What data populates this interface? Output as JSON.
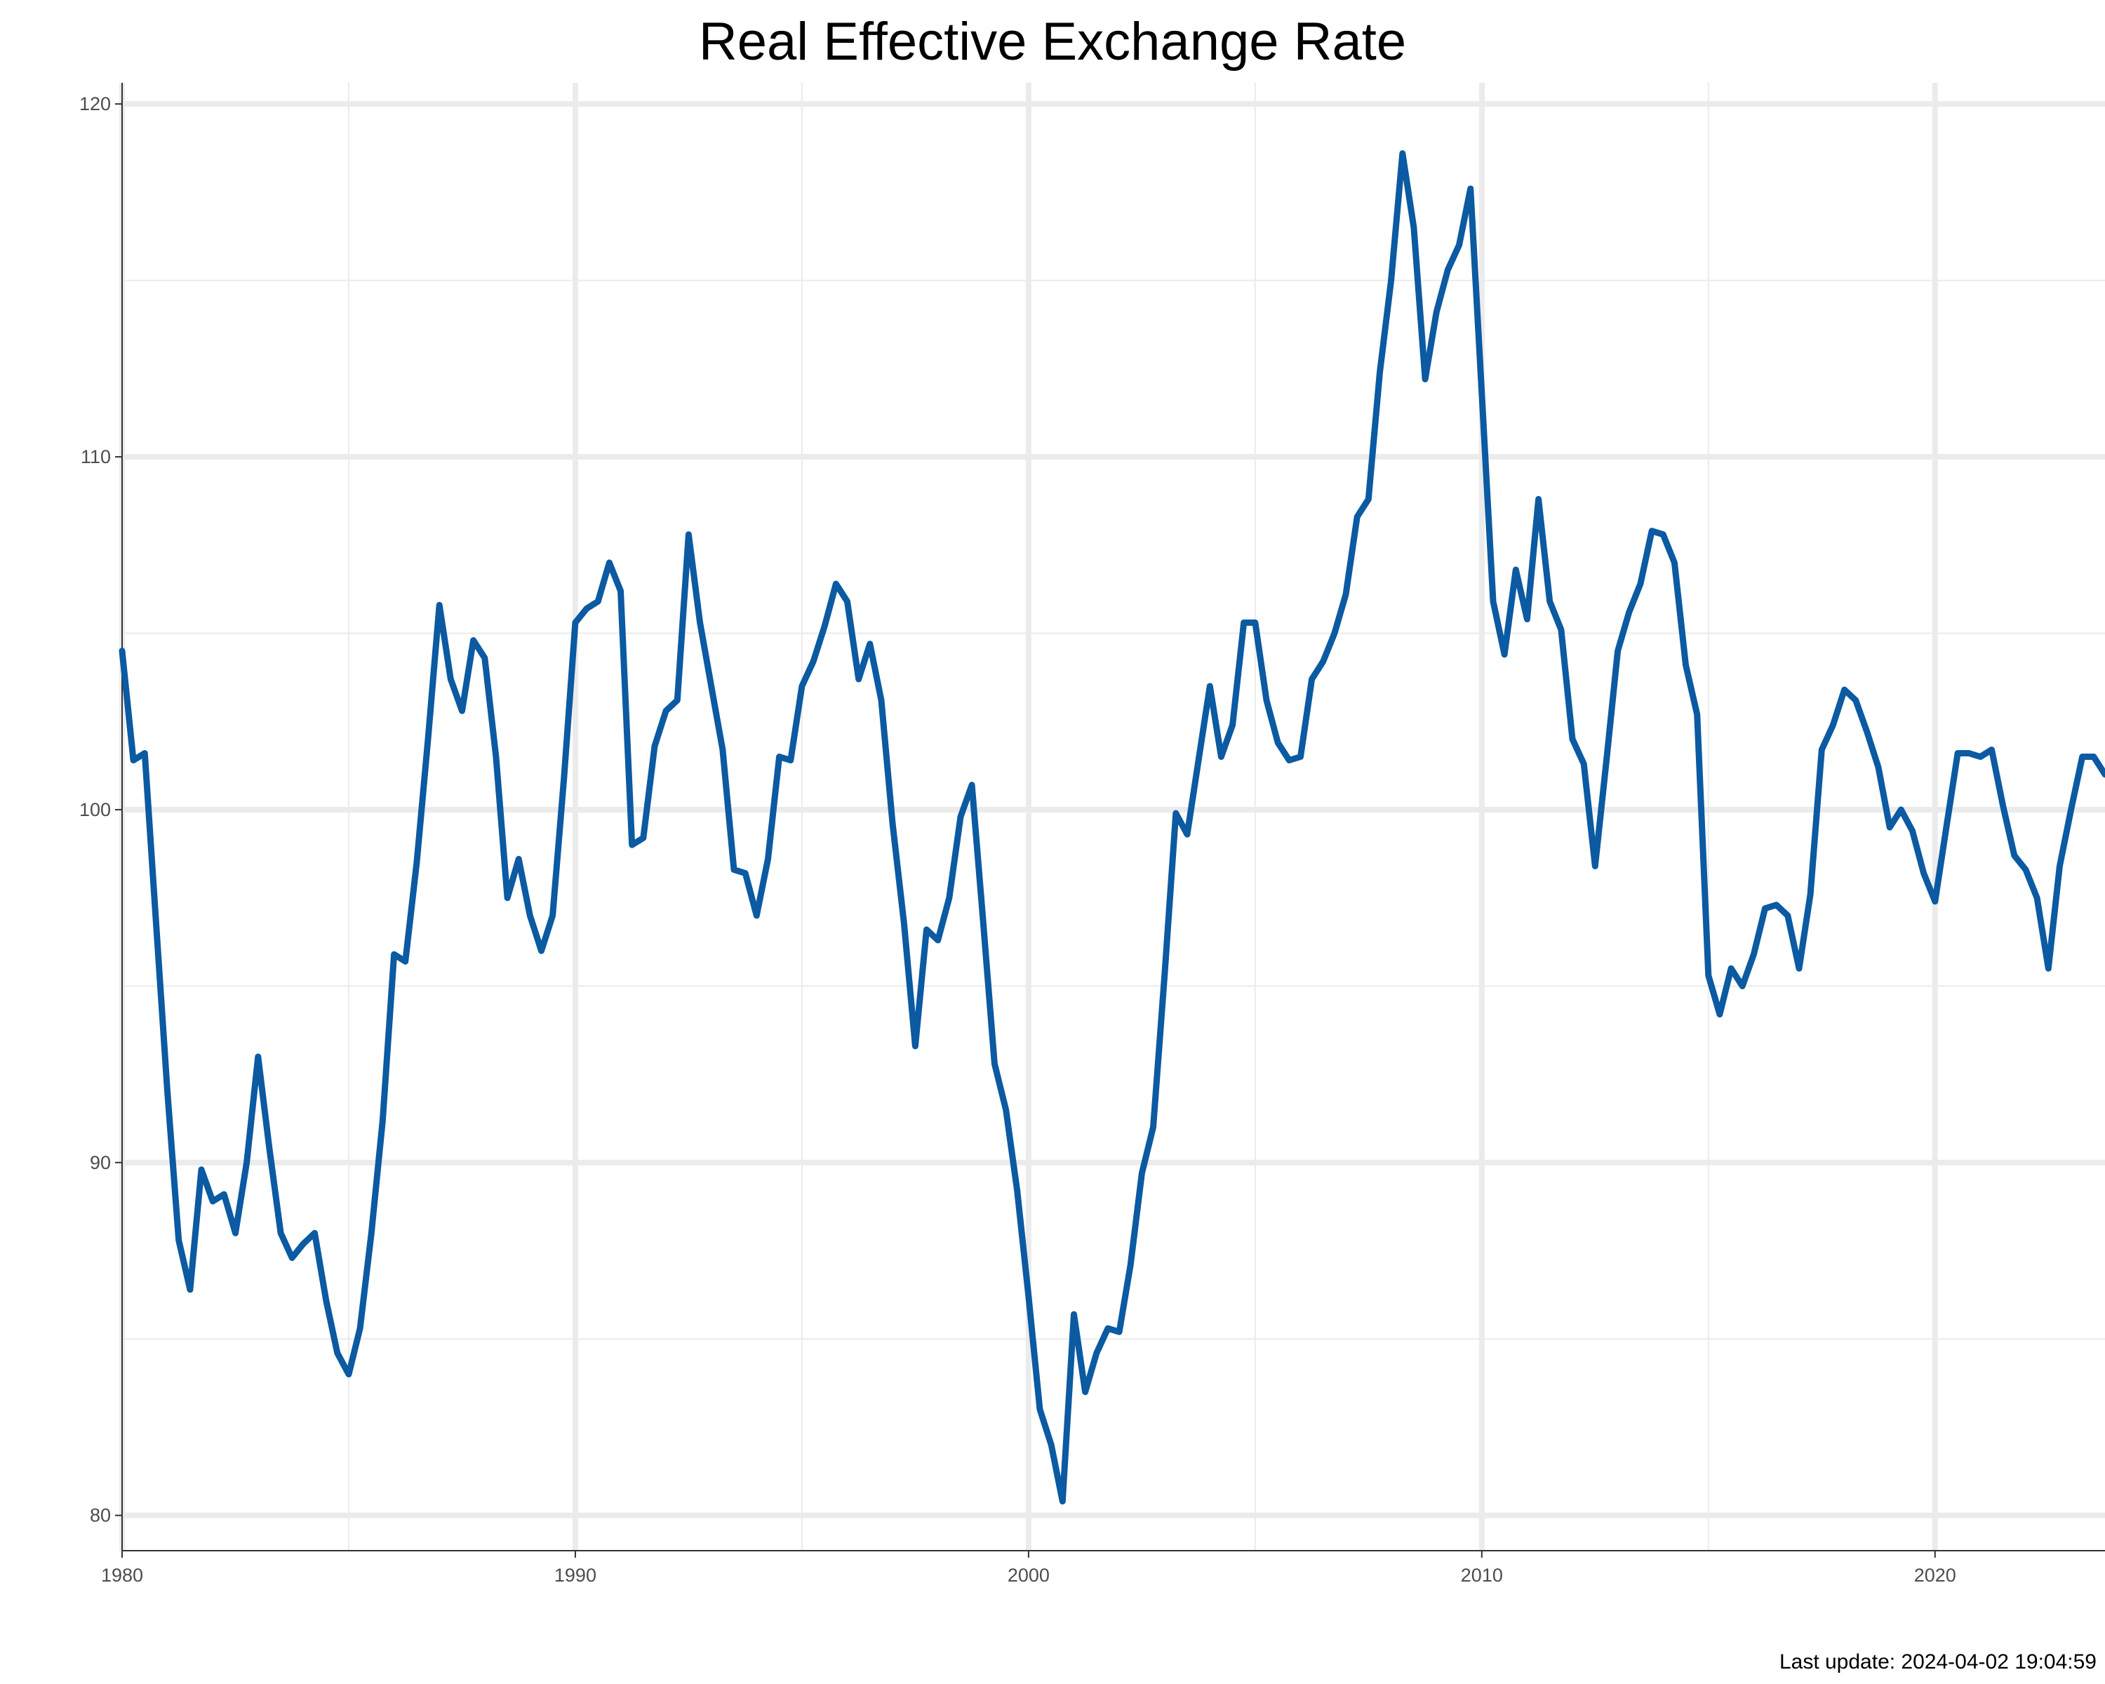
{
  "footnote": "Last update: 2024-04-02 19:04:59",
  "chart_data": {
    "type": "line",
    "title": "Real Effective Exchange Rate",
    "xlabel": "",
    "ylabel": "",
    "xlim": [
      1980,
      2023.75
    ],
    "ylim": [
      79,
      120.6
    ],
    "x_ticks": [
      1980,
      1990,
      2000,
      2010,
      2020
    ],
    "y_ticks": [
      80,
      90,
      100,
      110,
      120
    ],
    "grid": true,
    "legend": "none",
    "series": [
      {
        "color": "#0b5aa2",
        "x": [
          1980.0,
          1980.25,
          1980.5,
          1980.75,
          1981.0,
          1981.25,
          1981.5,
          1981.75,
          1982.0,
          1982.25,
          1982.5,
          1982.75,
          1983.0,
          1983.25,
          1983.5,
          1983.75,
          1984.0,
          1984.25,
          1984.5,
          1984.75,
          1985.0,
          1985.25,
          1985.5,
          1985.75,
          1986.0,
          1986.25,
          1986.5,
          1986.75,
          1987.0,
          1987.25,
          1987.5,
          1987.75,
          1988.0,
          1988.25,
          1988.5,
          1988.75,
          1989.0,
          1989.25,
          1989.5,
          1989.75,
          1990.0,
          1990.25,
          1990.5,
          1990.75,
          1991.0,
          1991.25,
          1991.5,
          1991.75,
          1992.0,
          1992.25,
          1992.5,
          1992.75,
          1993.0,
          1993.25,
          1993.5,
          1993.75,
          1994.0,
          1994.25,
          1994.5,
          1994.75,
          1995.0,
          1995.25,
          1995.5,
          1995.75,
          1996.0,
          1996.25,
          1996.5,
          1996.75,
          1997.0,
          1997.25,
          1997.5,
          1997.75,
          1998.0,
          1998.25,
          1998.5,
          1998.75,
          1999.0,
          1999.25,
          1999.5,
          1999.75,
          2000.0,
          2000.25,
          2000.5,
          2000.75,
          2001.0,
          2001.25,
          2001.5,
          2001.75,
          2002.0,
          2002.25,
          2002.5,
          2002.75,
          2003.0,
          2003.25,
          2003.5,
          2003.75,
          2004.0,
          2004.25,
          2004.5,
          2004.75,
          2005.0,
          2005.25,
          2005.5,
          2005.75,
          2006.0,
          2006.25,
          2006.5,
          2006.75,
          2007.0,
          2007.25,
          2007.5,
          2007.75,
          2008.0,
          2008.25,
          2008.5,
          2008.75,
          2009.0,
          2009.25,
          2009.5,
          2009.75,
          2010.0,
          2010.25,
          2010.5,
          2010.75,
          2011.0,
          2011.25,
          2011.5,
          2011.75,
          2012.0,
          2012.25,
          2012.5,
          2012.75,
          2013.0,
          2013.25,
          2013.5,
          2013.75,
          2014.0,
          2014.25,
          2014.5,
          2014.75,
          2015.0,
          2015.25,
          2015.5,
          2015.75,
          2016.0,
          2016.25,
          2016.5,
          2016.75,
          2017.0,
          2017.25,
          2017.5,
          2017.75,
          2018.0,
          2018.25,
          2018.5,
          2018.75,
          2019.0,
          2019.25,
          2019.5,
          2019.75,
          2020.0,
          2020.25,
          2020.5,
          2020.75,
          2021.0,
          2021.25,
          2021.5,
          2021.75,
          2022.0,
          2022.25,
          2022.5,
          2022.75,
          2023.0,
          2023.25,
          2023.5,
          2023.75
        ],
        "values": [
          104.5,
          101.4,
          101.6,
          96.8,
          92.0,
          87.8,
          86.4,
          89.8,
          88.9,
          89.1,
          88.0,
          90.0,
          93.0,
          90.4,
          88.0,
          87.3,
          87.7,
          88.0,
          86.1,
          84.6,
          84.0,
          85.3,
          88.0,
          91.2,
          95.9,
          95.7,
          98.5,
          102.0,
          105.8,
          103.7,
          102.8,
          104.8,
          104.3,
          101.5,
          97.5,
          98.6,
          97.0,
          96.0,
          97.0,
          100.9,
          105.3,
          105.7,
          105.9,
          107.0,
          106.2,
          99.0,
          99.2,
          101.8,
          102.8,
          103.1,
          107.8,
          105.3,
          103.5,
          101.7,
          98.3,
          98.2,
          97.0,
          98.6,
          101.5,
          101.4,
          103.5,
          104.2,
          105.2,
          106.4,
          105.9,
          103.7,
          104.7,
          103.1,
          99.6,
          96.8,
          93.3,
          96.6,
          96.3,
          97.5,
          99.8,
          100.7,
          96.8,
          92.8,
          91.5,
          89.2,
          86.2,
          83.0,
          82.0,
          80.4,
          85.7,
          83.5,
          84.6,
          85.3,
          85.2,
          87.1,
          89.7,
          91.0,
          95.3,
          99.9,
          99.3,
          101.4,
          103.5,
          101.5,
          102.4,
          105.3,
          105.3,
          103.1,
          101.9,
          101.4,
          101.5,
          103.7,
          104.2,
          105.0,
          106.1,
          108.3,
          108.8,
          112.4,
          115.0,
          118.6,
          116.5,
          112.2,
          114.1,
          115.3,
          116.0,
          117.6,
          111.8,
          105.9,
          104.4,
          106.8,
          105.4,
          108.8,
          105.9,
          105.1,
          102.0,
          101.3,
          98.4,
          101.4,
          104.5,
          105.6,
          106.4,
          107.9,
          107.8,
          107.0,
          104.1,
          102.7,
          95.3,
          94.2,
          95.5,
          95.0,
          95.9,
          97.2,
          97.3,
          97.0,
          95.5,
          97.6,
          101.7,
          102.4,
          103.4,
          103.1,
          102.2,
          101.2,
          99.5,
          100.0,
          99.4,
          98.2,
          97.4,
          99.5,
          101.6,
          101.6,
          101.5,
          101.7,
          100.1,
          98.7,
          98.3,
          97.5,
          95.5,
          98.4,
          100.0,
          101.5,
          101.5,
          101.0
        ]
      }
    ]
  }
}
